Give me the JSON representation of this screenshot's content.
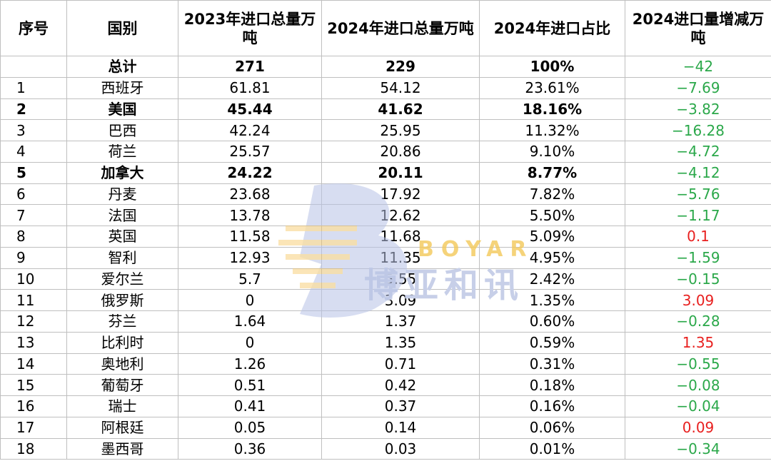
{
  "headers": [
    "序号",
    "国别",
    "2023年进口总量万吨",
    "2024年进口总量万吨",
    "2024年进口占比",
    "2024进口量增减万吨"
  ],
  "total": {
    "seq": "",
    "country": "总计",
    "y2023": "271",
    "y2024": "229",
    "share": "100%",
    "change": "−42"
  },
  "rows": [
    {
      "seq": "1",
      "country": "西班牙",
      "y2023": "61.81",
      "y2024": "54.12",
      "share": "23.61%",
      "change": "−7.69"
    },
    {
      "seq": "2",
      "country": "美国",
      "y2023": "45.44",
      "y2024": "41.62",
      "share": "18.16%",
      "change": "−3.82"
    },
    {
      "seq": "3",
      "country": "巴西",
      "y2023": "42.24",
      "y2024": "25.95",
      "share": "11.32%",
      "change": "−16.28"
    },
    {
      "seq": "4",
      "country": "荷兰",
      "y2023": "25.57",
      "y2024": "20.86",
      "share": "9.10%",
      "change": "−4.72"
    },
    {
      "seq": "5",
      "country": "加拿大",
      "y2023": "24.22",
      "y2024": "20.11",
      "share": "8.77%",
      "change": "−4.12"
    },
    {
      "seq": "6",
      "country": "丹麦",
      "y2023": "23.68",
      "y2024": "17.92",
      "share": "7.82%",
      "change": "−5.76"
    },
    {
      "seq": "7",
      "country": "法国",
      "y2023": "13.78",
      "y2024": "12.62",
      "share": "5.50%",
      "change": "−1.17"
    },
    {
      "seq": "8",
      "country": "英国",
      "y2023": "11.58",
      "y2024": "11.68",
      "share": "5.09%",
      "change": "0.1"
    },
    {
      "seq": "9",
      "country": "智利",
      "y2023": "12.93",
      "y2024": "11.35",
      "share": "4.95%",
      "change": "−1.59"
    },
    {
      "seq": "10",
      "country": "爱尔兰",
      "y2023": "5.7",
      "y2024": "5.55",
      "share": "2.42%",
      "change": "−0.15"
    },
    {
      "seq": "11",
      "country": "俄罗斯",
      "y2023": "0",
      "y2024": "3.09",
      "share": "1.35%",
      "change": "3.09"
    },
    {
      "seq": "12",
      "country": "芬兰",
      "y2023": "1.64",
      "y2024": "1.37",
      "share": "0.60%",
      "change": "−0.28"
    },
    {
      "seq": "13",
      "country": "比利时",
      "y2023": "0",
      "y2024": "1.35",
      "share": "0.59%",
      "change": "1.35"
    },
    {
      "seq": "14",
      "country": "奥地利",
      "y2023": "1.26",
      "y2024": "0.71",
      "share": "0.31%",
      "change": "−0.55"
    },
    {
      "seq": "15",
      "country": "葡萄牙",
      "y2023": "0.51",
      "y2024": "0.42",
      "share": "0.18%",
      "change": "−0.08"
    },
    {
      "seq": "16",
      "country": "瑞士",
      "y2023": "0.41",
      "y2024": "0.37",
      "share": "0.16%",
      "change": "−0.04"
    },
    {
      "seq": "17",
      "country": "阿根廷",
      "y2023": "0.05",
      "y2024": "0.14",
      "share": "0.06%",
      "change": "0.09"
    },
    {
      "seq": "18",
      "country": "墨西哥",
      "y2023": "0.36",
      "y2024": "0.03",
      "share": "0.01%",
      "change": "−0.34"
    }
  ],
  "bold_row_indices": [
    1,
    4
  ],
  "colors": {
    "negative": "#2ba84a",
    "positive": "#e8201f",
    "grid": "#bfbfbf"
  },
  "watermark": {
    "latin": "BOYAR",
    "chinese": "博亚和讯"
  }
}
